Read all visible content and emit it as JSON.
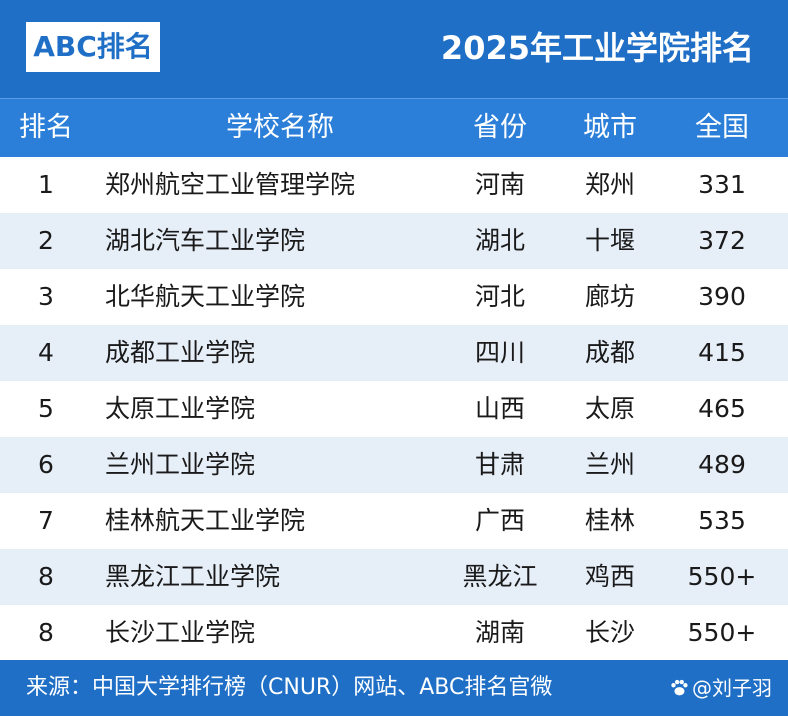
{
  "header": {
    "logo": "ABC排名",
    "title": "2025年工业学院排名"
  },
  "columns": {
    "rank": "排名",
    "school": "学校名称",
    "province": "省份",
    "city": "城市",
    "national": "全国"
  },
  "rows": [
    {
      "rank": "1",
      "school": "郑州航空工业管理学院",
      "province": "河南",
      "city": "郑州",
      "national": "331"
    },
    {
      "rank": "2",
      "school": "湖北汽车工业学院",
      "province": "湖北",
      "city": "十堰",
      "national": "372"
    },
    {
      "rank": "3",
      "school": "北华航天工业学院",
      "province": "河北",
      "city": "廊坊",
      "national": "390"
    },
    {
      "rank": "4",
      "school": "成都工业学院",
      "province": "四川",
      "city": "成都",
      "national": "415"
    },
    {
      "rank": "5",
      "school": "太原工业学院",
      "province": "山西",
      "city": "太原",
      "national": "465"
    },
    {
      "rank": "6",
      "school": "兰州工业学院",
      "province": "甘肃",
      "city": "兰州",
      "national": "489"
    },
    {
      "rank": "7",
      "school": "桂林航天工业学院",
      "province": "广西",
      "city": "桂林",
      "national": "535"
    },
    {
      "rank": "8",
      "school": "黑龙江工业学院",
      "province": "黑龙江",
      "city": "鸡西",
      "national": "550+"
    },
    {
      "rank": "8",
      "school": "长沙工业学院",
      "province": "湖南",
      "city": "长沙",
      "national": "550+"
    }
  ],
  "footer": {
    "source": "来源：中国大学排行榜（CNUR）网站、ABC排名官微",
    "watermark": "@刘子羽"
  },
  "colors": {
    "header_blue": "#1f6fc6",
    "column_header_blue": "#2b7fd8",
    "row_alt": "#e6eef8"
  }
}
